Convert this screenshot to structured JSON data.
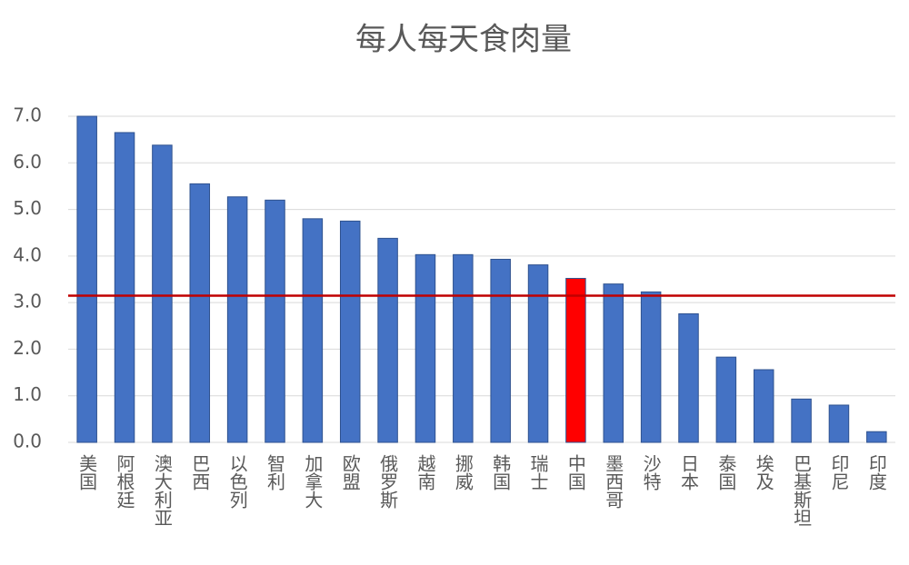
{
  "chart_data": {
    "type": "bar",
    "title": "每人每天食肉量",
    "categories": [
      "美国",
      "阿根廷",
      "澳大利亚",
      "巴西",
      "以色列",
      "智利",
      "加拿大",
      "欧盟",
      "俄罗斯",
      "越南",
      "挪威",
      "韩国",
      "瑞士",
      "中国",
      "墨西哥",
      "沙特",
      "日本",
      "泰国",
      "埃及",
      "巴基斯坦",
      "印尼",
      "印度"
    ],
    "values": [
      7.0,
      6.65,
      6.38,
      5.55,
      5.27,
      5.2,
      4.8,
      4.75,
      4.38,
      4.03,
      4.03,
      3.93,
      3.81,
      3.52,
      3.4,
      3.23,
      2.76,
      1.83,
      1.56,
      0.93,
      0.8,
      0.23
    ],
    "color": "#4472c4",
    "colors": [
      "#4472c4",
      "#4472c4",
      "#4472c4",
      "#4472c4",
      "#4472c4",
      "#4472c4",
      "#4472c4",
      "#4472c4",
      "#4472c4",
      "#4472c4",
      "#4472c4",
      "#4472c4",
      "#4472c4",
      "#ff0000",
      "#4472c4",
      "#4472c4",
      "#4472c4",
      "#4472c4",
      "#4472c4",
      "#4472c4",
      "#4472c4",
      "#4472c4"
    ],
    "reference_line": 3.15,
    "reference_color": "#c00000",
    "ylim": [
      0,
      7
    ],
    "yticks": [
      {
        "value": 0,
        "label": "0.0"
      },
      {
        "value": 1,
        "label": "1.0"
      },
      {
        "value": 2,
        "label": "2.0"
      },
      {
        "value": 3,
        "label": "3.0"
      },
      {
        "value": 4,
        "label": "4.0"
      },
      {
        "value": 5,
        "label": "5.0"
      },
      {
        "value": 6,
        "label": "6.0"
      },
      {
        "value": 7,
        "label": "7.0"
      }
    ],
    "grid": true
  }
}
